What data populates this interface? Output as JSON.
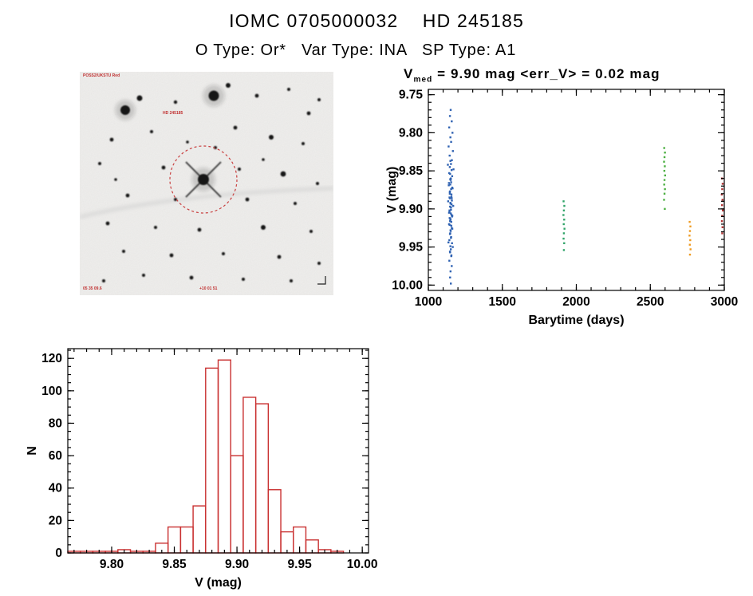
{
  "header": {
    "title": "IOMC 0705000032    HD 245185",
    "subtitle": "O Type: Or*   Var Type: INA   SP Type: A1"
  },
  "finder": {
    "survey_label": "POSS2/UKSTU Red",
    "target_label": "HD 245185",
    "coord_label": "05 35 09.6",
    "coord_label2": "+10 01 51",
    "circle_color": "#c94040",
    "stars": [
      [
        155,
        135,
        7
      ],
      [
        57,
        48,
        6
      ],
      [
        75,
        33,
        3.5
      ],
      [
        168,
        30,
        6.5
      ],
      [
        186,
        17,
        3
      ],
      [
        120,
        38,
        2.2
      ],
      [
        222,
        30,
        2.4
      ],
      [
        262,
        22,
        2
      ],
      [
        287,
        52,
        2.4
      ],
      [
        300,
        35,
        2
      ],
      [
        40,
        85,
        2.4
      ],
      [
        90,
        75,
        2
      ],
      [
        135,
        88,
        1.8
      ],
      [
        170,
        95,
        2
      ],
      [
        195,
        70,
        2.4
      ],
      [
        240,
        82,
        3
      ],
      [
        280,
        90,
        2
      ],
      [
        25,
        115,
        2
      ],
      [
        105,
        120,
        2.4
      ],
      [
        200,
        122,
        2
      ],
      [
        230,
        110,
        1.8
      ],
      [
        255,
        128,
        3.4
      ],
      [
        298,
        140,
        2
      ],
      [
        60,
        155,
        2.4
      ],
      [
        120,
        160,
        2
      ],
      [
        210,
        160,
        2.4
      ],
      [
        270,
        165,
        2
      ],
      [
        45,
        135,
        1.8
      ],
      [
        35,
        190,
        2.4
      ],
      [
        95,
        195,
        2
      ],
      [
        150,
        198,
        2.4
      ],
      [
        230,
        195,
        3
      ],
      [
        290,
        200,
        2
      ],
      [
        55,
        225,
        2
      ],
      [
        115,
        230,
        2.4
      ],
      [
        180,
        228,
        2
      ],
      [
        250,
        232,
        2.4
      ],
      [
        300,
        240,
        2
      ],
      [
        80,
        255,
        2
      ],
      [
        140,
        258,
        2.4
      ],
      [
        205,
        260,
        2
      ],
      [
        265,
        262,
        2
      ],
      [
        30,
        262,
        2
      ]
    ]
  },
  "chart_data": [
    {
      "type": "scatter",
      "title": "V_med = 9.90 mag <err_V> = 0.02 mag",
      "title_v": "V",
      "title_sub": "med",
      "title_rest": " = 9.90 mag <err_V> = 0.02 mag",
      "xlabel": "Barytime (days)",
      "ylabel": "V (mag)",
      "xlim": [
        1000,
        3000
      ],
      "ylim": [
        9.743,
        10.007
      ],
      "y_inverted": true,
      "x_ticks": [
        1000,
        1500,
        2000,
        2500,
        3000
      ],
      "y_ticks": [
        9.75,
        9.8,
        9.85,
        9.9,
        9.95,
        10.0
      ],
      "x_minor": 100,
      "y_minor": 0.01,
      "x_decimals": 0,
      "y_decimals": 2,
      "series": [
        {
          "name": "epoch-1",
          "color": "#2f62b2",
          "points": [
            [
              1151,
              9.77
            ],
            [
              1146,
              9.778
            ],
            [
              1158,
              9.785
            ],
            [
              1141,
              9.793
            ],
            [
              1163,
              9.8
            ],
            [
              1149,
              9.806
            ],
            [
              1154,
              9.812
            ],
            [
              1137,
              9.818
            ],
            [
              1166,
              9.824
            ],
            [
              1144,
              9.83
            ],
            [
              1159,
              9.836
            ],
            [
              1132,
              9.842
            ],
            [
              1170,
              9.848
            ],
            [
              1147,
              9.854
            ],
            [
              1152,
              9.86
            ],
            [
              1139,
              9.866
            ],
            [
              1161,
              9.872
            ],
            [
              1145,
              9.878
            ],
            [
              1156,
              9.884
            ],
            [
              1134,
              9.89
            ],
            [
              1168,
              9.896
            ],
            [
              1143,
              9.902
            ],
            [
              1157,
              9.908
            ],
            [
              1150,
              9.914
            ],
            [
              1140,
              9.92
            ],
            [
              1162,
              9.926
            ],
            [
              1148,
              9.932
            ],
            [
              1153,
              9.938
            ],
            [
              1136,
              9.944
            ],
            [
              1165,
              9.95
            ],
            [
              1146,
              9.956
            ],
            [
              1155,
              9.962
            ],
            [
              1142,
              9.968
            ],
            [
              1158,
              9.975
            ],
            [
              1150,
              9.982
            ],
            [
              1147,
              9.99
            ],
            [
              1152,
              9.998
            ],
            [
              1149,
              9.837
            ],
            [
              1153,
              9.841
            ],
            [
              1145,
              9.845
            ],
            [
              1157,
              9.849
            ],
            [
              1141,
              9.853
            ],
            [
              1161,
              9.857
            ],
            [
              1148,
              9.861
            ],
            [
              1154,
              9.865
            ],
            [
              1138,
              9.869
            ],
            [
              1164,
              9.873
            ],
            [
              1146,
              9.877
            ],
            [
              1156,
              9.881
            ],
            [
              1143,
              9.885
            ],
            [
              1159,
              9.889
            ],
            [
              1150,
              9.893
            ],
            [
              1147,
              9.897
            ],
            [
              1153,
              9.901
            ],
            [
              1140,
              9.905
            ],
            [
              1162,
              9.909
            ],
            [
              1148,
              9.913
            ],
            [
              1155,
              9.917
            ],
            [
              1144,
              9.921
            ],
            [
              1158,
              9.925
            ],
            [
              1151,
              9.929
            ],
            [
              1146,
              9.933
            ],
            [
              1154,
              9.937
            ],
            [
              1142,
              9.941
            ],
            [
              1160,
              9.945
            ],
            [
              1149,
              9.949
            ],
            [
              1152,
              9.953
            ],
            [
              1147,
              9.957
            ],
            [
              1156,
              9.961
            ],
            [
              1151,
              9.862
            ],
            [
              1148,
              9.868
            ],
            [
              1154,
              9.874
            ],
            [
              1145,
              9.88
            ],
            [
              1158,
              9.886
            ],
            [
              1149,
              9.892
            ],
            [
              1153,
              9.898
            ],
            [
              1143,
              9.904
            ],
            [
              1160,
              9.91
            ],
            [
              1147,
              9.916
            ],
            [
              1155,
              9.922
            ],
            [
              1150,
              9.928
            ],
            [
              1146,
              9.886
            ],
            [
              1157,
              9.894
            ],
            [
              1152,
              9.906
            ],
            [
              1144,
              9.912
            ]
          ]
        },
        {
          "name": "epoch-2",
          "color": "#31a469",
          "points": [
            [
              1914,
              9.89
            ],
            [
              1919,
              9.896
            ],
            [
              1916,
              9.902
            ],
            [
              1913,
              9.908
            ],
            [
              1918,
              9.914
            ],
            [
              1915,
              9.92
            ],
            [
              1920,
              9.926
            ],
            [
              1916,
              9.932
            ],
            [
              1914,
              9.939
            ],
            [
              1918,
              9.945
            ],
            [
              1916,
              9.954
            ]
          ]
        },
        {
          "name": "epoch-3",
          "color": "#4db043",
          "points": [
            [
              2594,
              9.82
            ],
            [
              2599,
              9.826
            ],
            [
              2596,
              9.832
            ],
            [
              2593,
              9.838
            ],
            [
              2598,
              9.844
            ],
            [
              2595,
              9.85
            ],
            [
              2600,
              9.856
            ],
            [
              2596,
              9.862
            ],
            [
              2594,
              9.868
            ],
            [
              2599,
              9.874
            ],
            [
              2596,
              9.88
            ],
            [
              2593,
              9.888
            ],
            [
              2598,
              9.9
            ]
          ]
        },
        {
          "name": "epoch-4",
          "color": "#ef9b22",
          "points": [
            [
              2766,
              9.917
            ],
            [
              2771,
              9.923
            ],
            [
              2768,
              9.929
            ],
            [
              2765,
              9.935
            ],
            [
              2770,
              9.941
            ],
            [
              2767,
              9.947
            ],
            [
              2772,
              9.953
            ],
            [
              2768,
              9.96
            ]
          ]
        },
        {
          "name": "epoch-5",
          "color": "#b03535",
          "points": [
            [
              2984,
              9.86
            ],
            [
              2989,
              9.867
            ],
            [
              2986,
              9.874
            ],
            [
              2983,
              9.881
            ],
            [
              2988,
              9.888
            ],
            [
              2985,
              9.895
            ],
            [
              2990,
              9.902
            ],
            [
              2986,
              9.909
            ],
            [
              2984,
              9.916
            ],
            [
              2988,
              9.924
            ],
            [
              2986,
              9.932
            ]
          ]
        }
      ]
    },
    {
      "type": "bar",
      "color": "#c93030",
      "xlabel": "V (mag)",
      "ylabel": "N",
      "xlim": [
        9.765,
        10.005
      ],
      "ylim": [
        0,
        126
      ],
      "x_ticks": [
        9.8,
        9.85,
        9.9,
        9.95,
        10.0
      ],
      "y_ticks": [
        0,
        20,
        40,
        60,
        80,
        100,
        120
      ],
      "x_minor": 0.01,
      "y_minor": 5,
      "x_decimals": 2,
      "y_decimals": 0,
      "bin_width": 0.01,
      "bin_centers": [
        9.77,
        9.78,
        9.79,
        9.8,
        9.81,
        9.82,
        9.83,
        9.84,
        9.85,
        9.86,
        9.87,
        9.88,
        9.89,
        9.9,
        9.91,
        9.92,
        9.93,
        9.94,
        9.95,
        9.96,
        9.97,
        9.98,
        9.99,
        10.0
      ],
      "counts": [
        1,
        1,
        1,
        1,
        2,
        1,
        1,
        6,
        16,
        16,
        29,
        114,
        119,
        60,
        96,
        92,
        39,
        13,
        16,
        8,
        2,
        1,
        0,
        0
      ]
    }
  ]
}
